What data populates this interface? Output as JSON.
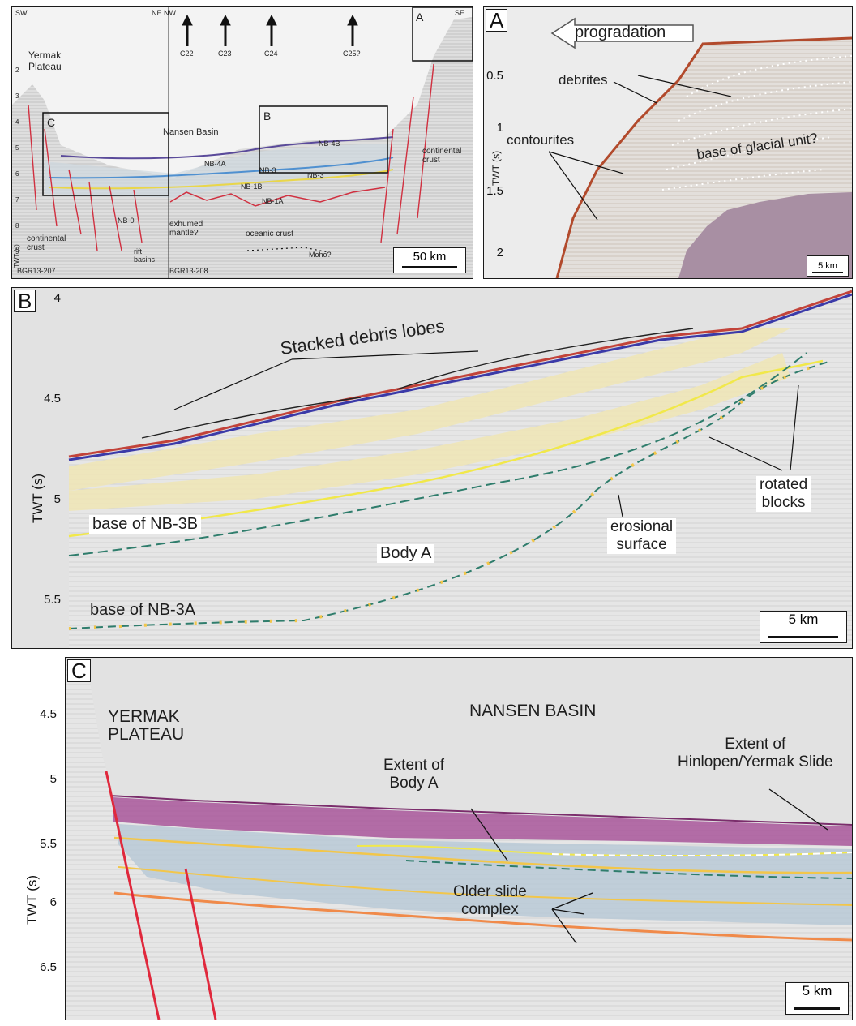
{
  "overview": {
    "corner_sw": "SW",
    "corner_ne_nw": "NE NW",
    "corner_se": "SE",
    "chrons": [
      "C22",
      "C23",
      "C24",
      "C25?"
    ],
    "region_yermak": "Yermak\nPlateau",
    "region_nansen": "Nansen Basin",
    "box_a": "A",
    "box_b": "B",
    "box_c": "C",
    "units": [
      "NB-4B",
      "NB-4A",
      "NB-3",
      "NB-3",
      "NB-1B",
      "NB-1A",
      "NB-0"
    ],
    "exhumed_mantle": "exhumed\nmantle?",
    "oceanic_crust": "oceanic crust",
    "continental_crust_left": "continental\ncrust",
    "continental_crust_right": "continental\ncrust",
    "rift_basins": "rift\nbasins",
    "moho": "Moho?",
    "line_left": "BGR13-207",
    "line_right": "BGR13-208",
    "axis_label": "TWT (s)",
    "ticks": [
      "2",
      "3",
      "4",
      "5",
      "6",
      "7",
      "8",
      "9"
    ],
    "scale": "50 km"
  },
  "panel_a": {
    "label": "A",
    "arrow_text": "progradation",
    "debrites": "debrites",
    "contourites": "contourites",
    "glacial": "base of glacial unit?",
    "axis_label": "TWT (s)",
    "ticks": [
      "0.5",
      "1",
      "1.5",
      "2"
    ],
    "scale": "5 km"
  },
  "panel_b": {
    "label": "B",
    "stacked": "Stacked debris lobes",
    "base_nb3b": "base of NB-3B",
    "body_a": "Body A",
    "erosional": "erosional\nsurface",
    "rotated": "rotated\nblocks",
    "base_nb3a": "base of NB-3A",
    "axis_label": "TWT (s)",
    "ticks": [
      "4",
      "4.5",
      "5",
      "5.5"
    ],
    "scale": "5 km"
  },
  "panel_c": {
    "label": "C",
    "yermak": "YERMAK\nPLATEAU",
    "nansen": "NANSEN BASIN",
    "extent_slide": "Extent of\nHinlopen/Yermak Slide",
    "extent_body": "Extent of\nBody A",
    "older": "Older slide\ncomplex",
    "axis_label": "TWT (s)",
    "ticks": [
      "4.5",
      "5",
      "5.5",
      "6",
      "6.5"
    ],
    "scale": "5 km"
  },
  "colors": {
    "seismic_bg": "#e9e9e9",
    "debris": "#efe6b8",
    "slide": "#a8569a",
    "older_complex": "#b9c9d6",
    "fault": "#e0283c",
    "yellow_horizon": "#f1e84a",
    "teal_dashed": "#2f7d6c",
    "orange_horizon": "#f08a4a"
  }
}
